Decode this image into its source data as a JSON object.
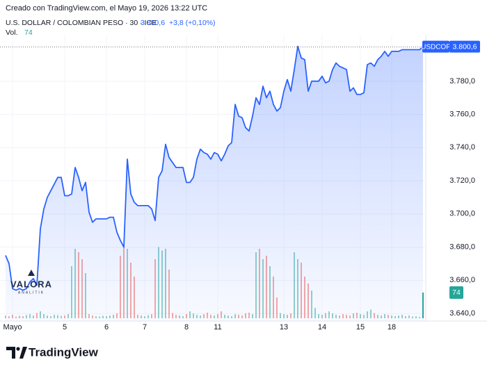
{
  "chart_data": {
    "type": "area",
    "subtitle": "Creado con TradingView.com, el Mayo 19, 2026 13:22 UTC",
    "title": "U.S. DOLLAR / COLOMBIAN PESO · 30 · ICE",
    "change": "+3,8 (+0,10%)",
    "brand": "TradingView",
    "watermark": [
      "VALORA",
      "ANALITIK"
    ],
    "last_price": {
      "value": 3800.6,
      "label": "3.800,6"
    },
    "xlim": [
      0,
      120
    ],
    "xticks": [
      {
        "value": 2,
        "label": "Mayo"
      },
      {
        "value": 17,
        "label": "5"
      },
      {
        "value": 29,
        "label": "6"
      },
      {
        "value": 40,
        "label": "7"
      },
      {
        "value": 52,
        "label": "8"
      },
      {
        "value": 61,
        "label": "11"
      },
      {
        "value": 80,
        "label": "13"
      },
      {
        "value": 91,
        "label": "14"
      },
      {
        "value": 102,
        "label": "15"
      },
      {
        "value": 111,
        "label": "18"
      }
    ],
    "ylim": [
      3635,
      3808
    ],
    "yticks": [
      {
        "value": 3640,
        "label": "3.640,0"
      },
      {
        "value": 3660,
        "label": "3.660,0"
      },
      {
        "value": 3680,
        "label": "3.680,0"
      },
      {
        "value": 3700,
        "label": "3.700,0"
      },
      {
        "value": 3720,
        "label": "3.720,0"
      },
      {
        "value": 3740,
        "label": "3.740,0"
      },
      {
        "value": 3760,
        "label": "3.760,0"
      },
      {
        "value": 3780,
        "label": "3.780,0"
      }
    ],
    "grid": true,
    "series": [
      {
        "name": "USDCOP",
        "color": "#2962ff",
        "values": [
          3675,
          3670,
          3655,
          3654,
          3655,
          3654,
          3655,
          3659,
          3661,
          3657,
          3691,
          3703,
          3710,
          3714,
          3718,
          3722,
          3722,
          3711,
          3711,
          3712,
          3728,
          3722,
          3714,
          3719,
          3701,
          3695,
          3697,
          3697,
          3697,
          3697,
          3698,
          3698,
          3689,
          3684,
          3680,
          3733,
          3712,
          3707,
          3705,
          3705,
          3705,
          3705,
          3703,
          3696,
          3722,
          3726,
          3742,
          3734,
          3731,
          3728,
          3728,
          3728,
          3719,
          3719,
          3722,
          3733,
          3739,
          3737,
          3736,
          3733,
          3737,
          3736,
          3732,
          3736,
          3741,
          3743,
          3766,
          3759,
          3758,
          3752,
          3750,
          3759,
          3770,
          3766,
          3777,
          3770,
          3774,
          3766,
          3762,
          3764,
          3774,
          3781,
          3774,
          3787,
          3801,
          3794,
          3793,
          3774,
          3780,
          3780,
          3780,
          3783,
          3779,
          3780,
          3787,
          3791,
          3789,
          3788,
          3787,
          3774,
          3776,
          3772,
          3772,
          3773,
          3790,
          3791,
          3789,
          3793,
          3795,
          3798,
          3795,
          3798,
          3798,
          3798,
          3799,
          3799,
          3799,
          3799,
          3799,
          3799,
          3800.6
        ]
      }
    ],
    "volume": {
      "name": "Vol.",
      "up_color": "#26a69a",
      "down_color": "#ef5350",
      "ylim": [
        0,
        230
      ],
      "values": [
        8,
        6,
        10,
        5,
        7,
        6,
        9,
        12,
        8,
        15,
        20,
        12,
        8,
        6,
        10,
        9,
        7,
        8,
        12,
        150,
        200,
        190,
        170,
        130,
        12,
        8,
        6,
        5,
        7,
        6,
        8,
        10,
        14,
        180,
        210,
        200,
        160,
        120,
        10,
        8,
        6,
        9,
        12,
        170,
        205,
        195,
        200,
        140,
        15,
        10,
        8,
        6,
        12,
        20,
        14,
        10,
        8,
        12,
        16,
        10,
        8,
        12,
        20,
        10,
        8,
        6,
        12,
        10,
        8,
        14,
        16,
        12,
        190,
        200,
        170,
        180,
        150,
        120,
        60,
        15,
        12,
        10,
        14,
        190,
        170,
        160,
        120,
        100,
        80,
        30,
        12,
        10,
        15,
        20,
        14,
        10,
        8,
        12,
        10,
        8,
        14,
        16,
        12,
        10,
        20,
        25,
        15,
        10,
        8,
        12,
        10,
        8,
        6,
        8,
        10,
        6,
        8,
        5,
        6,
        4,
        74
      ]
    }
  }
}
